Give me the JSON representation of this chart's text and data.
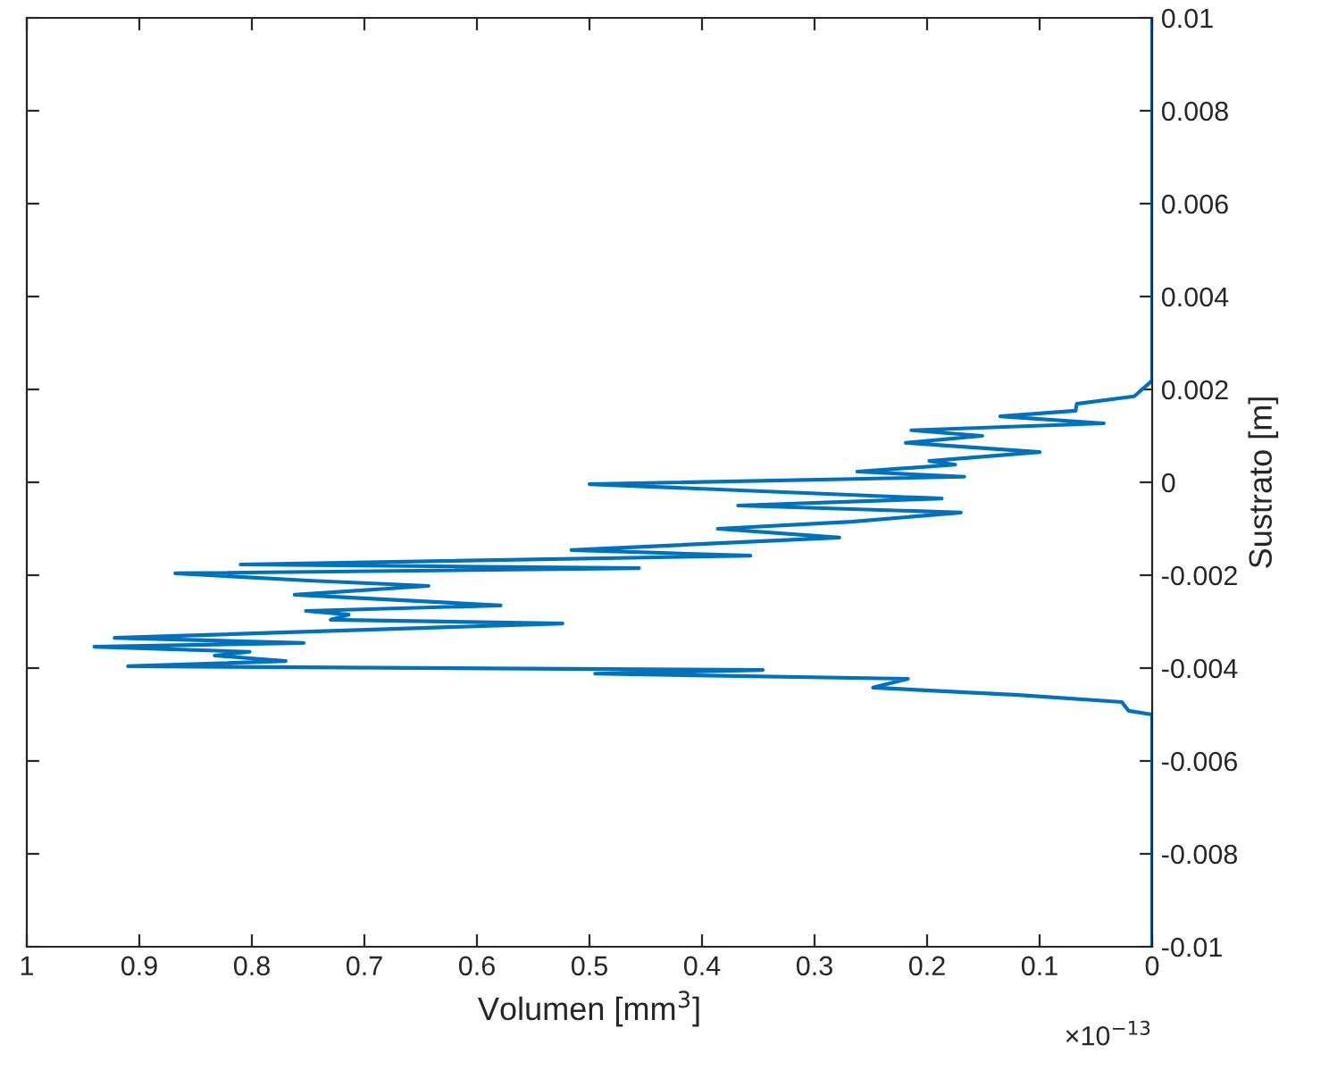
{
  "chart_data": {
    "type": "line",
    "xlabel": "Volumen [mm$^{3}$]",
    "ylabel": "Sustrato [m]",
    "annotations": [
      "×10$^{−13}$"
    ],
    "xlim": [
      1,
      0
    ],
    "xticks": [
      1,
      0.9,
      0.8,
      0.7,
      0.6,
      0.5,
      0.4,
      0.3,
      0.2,
      0.1,
      0
    ],
    "ylim": [
      -0.01,
      0.01
    ],
    "yticks": [
      -0.01,
      -0.008,
      -0.006,
      -0.004,
      -0.002,
      0,
      0.002,
      0.004,
      0.006,
      0.008,
      0.01
    ],
    "grid": false,
    "legend": false,
    "series": [
      {
        "color": "#0072bd",
        "x": [
          0,
          0,
          0.016,
          0.067,
          0.068,
          0.135,
          0.043,
          0.214,
          0.151,
          0.219,
          0.1,
          0.198,
          0.175,
          0.262,
          0.167,
          0.5,
          0.187,
          0.368,
          0.17,
          0.267,
          0.386,
          0.278,
          0.516,
          0.357,
          0.81,
          0.456,
          0.868,
          0.746,
          0.643,
          0.762,
          0.579,
          0.752,
          0.714,
          0.73,
          0.524,
          0.922,
          0.754,
          0.94,
          0.802,
          0.833,
          0.77,
          0.91,
          0.346,
          0.495,
          0.217,
          0.248,
          0.119,
          0.027,
          0.021,
          0,
          0
        ],
        "values": [
          0.01,
          0.00219,
          0.00185,
          0.00169,
          0.00154,
          0.00142,
          0.00127,
          0.00112,
          0.001,
          0.00085,
          0.00065,
          0.00046,
          0.00038,
          0.00023,
          0.00012,
          -4e-05,
          -0.00035,
          -0.0005,
          -0.00065,
          -0.00085,
          -0.001,
          -0.00119,
          -0.00146,
          -0.00158,
          -0.00177,
          -0.00185,
          -0.00196,
          -0.00212,
          -0.00223,
          -0.00242,
          -0.00265,
          -0.00277,
          -0.00285,
          -0.00296,
          -0.00304,
          -0.00335,
          -0.00346,
          -0.00354,
          -0.00365,
          -0.00373,
          -0.00385,
          -0.00396,
          -0.00404,
          -0.00412,
          -0.00423,
          -0.00442,
          -0.00458,
          -0.00473,
          -0.00492,
          -0.005,
          -0.01
        ]
      }
    ]
  }
}
